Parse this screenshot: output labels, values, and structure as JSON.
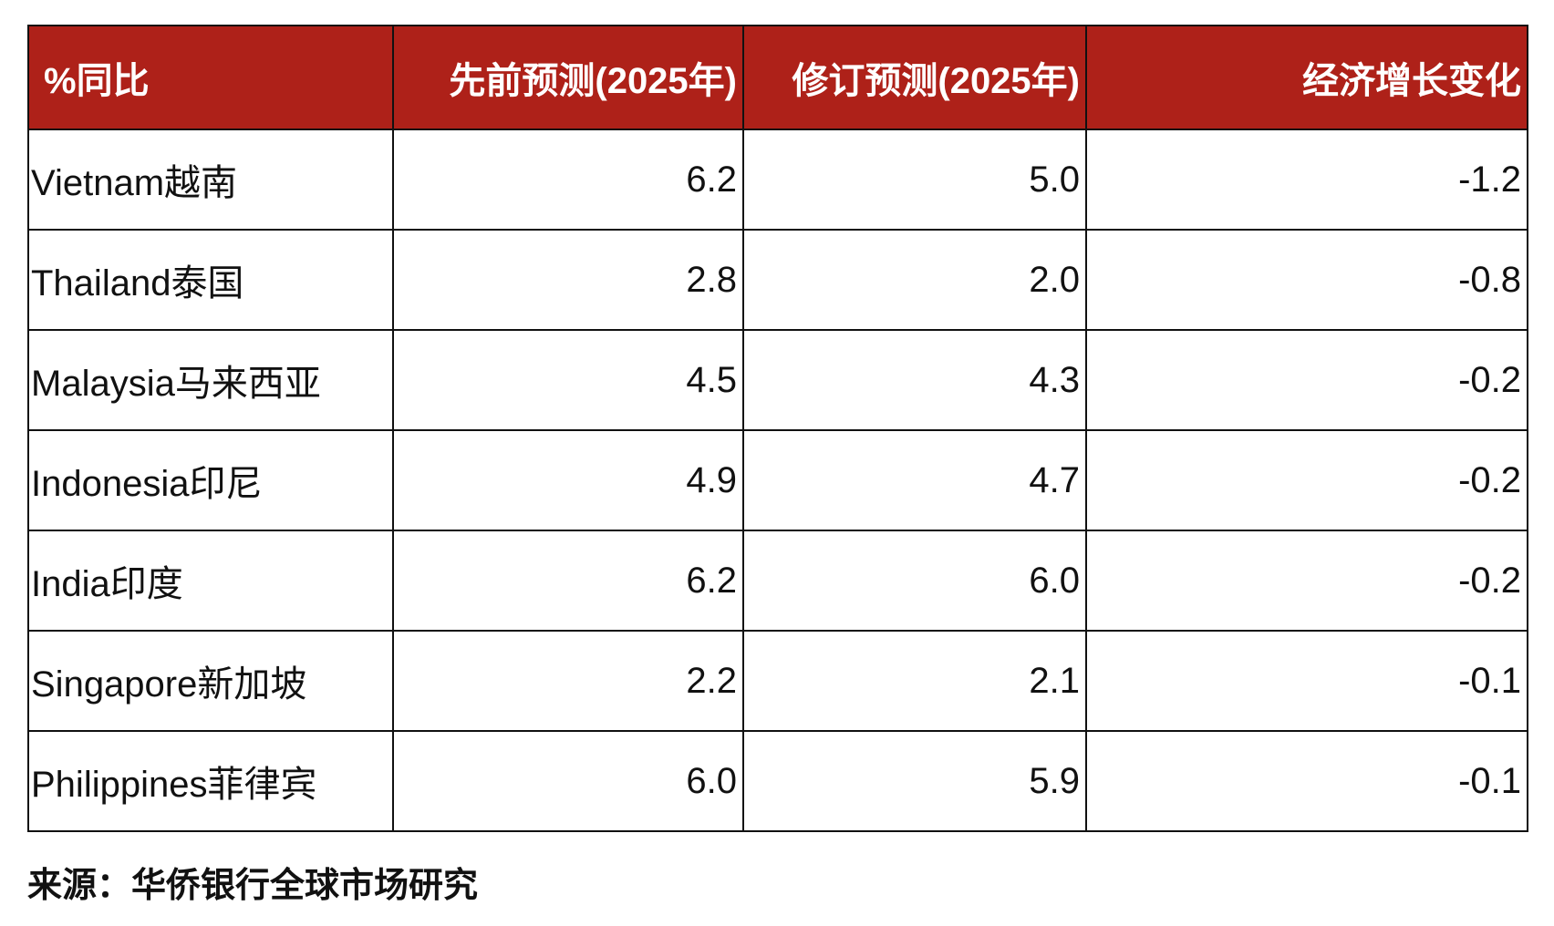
{
  "chart_data": {
    "type": "table",
    "columns": [
      "%同比",
      "先前预测(2025年)",
      "修订预测(2025年)",
      "经济增长变化"
    ],
    "rows": [
      {
        "country": "Vietnam越南",
        "previous": "6.2",
        "revised": "5.0",
        "change": "-1.2"
      },
      {
        "country": "Thailand泰国",
        "previous": "2.8",
        "revised": "2.0",
        "change": "-0.8"
      },
      {
        "country": "Malaysia马来西亚",
        "previous": "4.5",
        "revised": "4.3",
        "change": "-0.2"
      },
      {
        "country": "Indonesia印尼",
        "previous": "4.9",
        "revised": "4.7",
        "change": "-0.2"
      },
      {
        "country": "India印度",
        "previous": "6.2",
        "revised": "6.0",
        "change": "-0.2"
      },
      {
        "country": "Singapore新加坡",
        "previous": "2.2",
        "revised": "2.1",
        "change": "-0.1"
      },
      {
        "country": "Philippines菲律宾",
        "previous": "6.0",
        "revised": "5.9",
        "change": "-0.1"
      }
    ]
  },
  "source": "来源：华侨银行全球市场研究",
  "colors": {
    "header_background": "#AE2119",
    "header_text": "#FFFFFF",
    "border": "#111111",
    "body_text": "#111111"
  }
}
